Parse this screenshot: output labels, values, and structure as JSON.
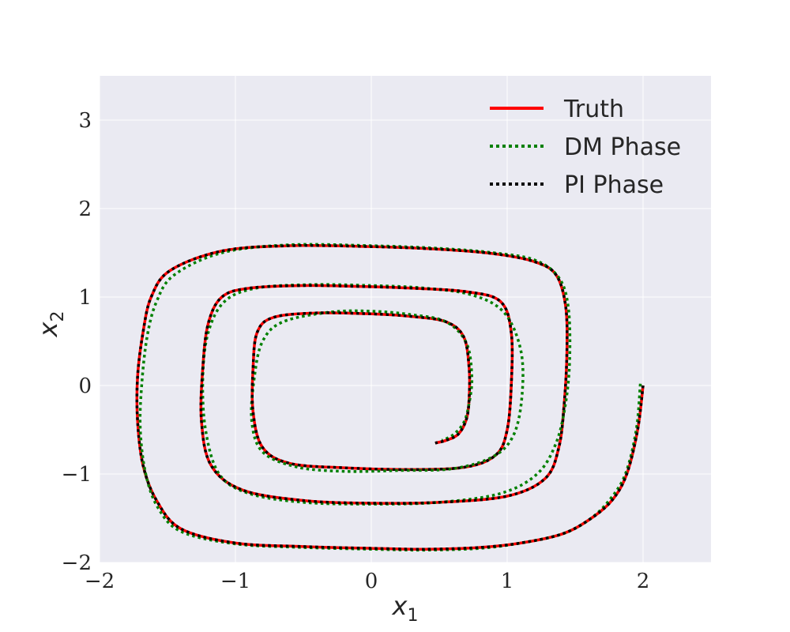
{
  "chart_data": {
    "type": "line",
    "title": "",
    "xlabel": "x",
    "xlabel_sub": "1",
    "ylabel": "x",
    "ylabel_sub": "2",
    "xlim": [
      -2,
      2.5
    ],
    "ylim": [
      -2,
      3.5
    ],
    "xticks": [
      -2,
      -1,
      0,
      1,
      2
    ],
    "yticks": [
      -2,
      -1,
      0,
      1,
      2,
      3
    ],
    "xtick_labels": [
      "−2",
      "−1",
      "0",
      "1",
      "2"
    ],
    "ytick_labels": [
      "−2",
      "−1",
      "0",
      "1",
      "2",
      "3"
    ],
    "grid": true,
    "background": "#eaeaf2",
    "legend_position": "top-right",
    "series": [
      {
        "name": "Truth",
        "style": "solid",
        "color": "#ff0000",
        "x": [
          2.0,
          1.96,
          1.88,
          1.77,
          1.6,
          1.4,
          1.1,
          0.8,
          0.4,
          0.0,
          -0.5,
          -1.0,
          -1.4,
          -1.58,
          -1.68,
          -1.72,
          -1.72,
          -1.68,
          -1.62,
          -1.48,
          -1.1,
          -0.6,
          0.0,
          0.5,
          0.9,
          1.2,
          1.36,
          1.43,
          1.44,
          1.42,
          1.38,
          1.28,
          1.0,
          0.5,
          0.0,
          -0.5,
          -0.95,
          -1.18,
          -1.25,
          -1.24,
          -1.2,
          -1.1,
          -0.9,
          -0.5,
          -0.1,
          0.3,
          0.7,
          0.95,
          1.03,
          1.03,
          1.0,
          0.92,
          0.7,
          0.3,
          -0.2,
          -0.6,
          -0.8,
          -0.87,
          -0.87,
          -0.84,
          -0.72,
          -0.4,
          0.0,
          0.3,
          0.55,
          0.68,
          0.72,
          0.72,
          0.7,
          0.64,
          0.55,
          0.47
        ],
        "y": [
          0.0,
          -0.5,
          -1.0,
          -1.3,
          -1.52,
          -1.68,
          -1.78,
          -1.83,
          -1.85,
          -1.84,
          -1.82,
          -1.78,
          -1.62,
          -1.3,
          -0.9,
          -0.4,
          0.1,
          0.6,
          1.0,
          1.3,
          1.52,
          1.58,
          1.57,
          1.54,
          1.49,
          1.4,
          1.25,
          0.9,
          0.4,
          -0.2,
          -0.7,
          -1.05,
          -1.25,
          -1.32,
          -1.33,
          -1.3,
          -1.18,
          -0.9,
          -0.4,
          0.2,
          0.7,
          1.0,
          1.1,
          1.13,
          1.12,
          1.1,
          1.06,
          0.95,
          0.6,
          0.0,
          -0.5,
          -0.78,
          -0.92,
          -0.95,
          -0.93,
          -0.88,
          -0.7,
          -0.3,
          0.2,
          0.6,
          0.77,
          0.82,
          0.81,
          0.78,
          0.72,
          0.55,
          0.2,
          -0.15,
          -0.38,
          -0.55,
          -0.62,
          -0.65
        ]
      },
      {
        "name": "DM Phase",
        "style": "dotted",
        "color": "#008000",
        "x": [
          1.98,
          1.95,
          1.87,
          1.75,
          1.6,
          1.4,
          1.1,
          0.8,
          0.4,
          0.0,
          -0.5,
          -1.0,
          -1.4,
          -1.57,
          -1.66,
          -1.7,
          -1.69,
          -1.65,
          -1.58,
          -1.45,
          -1.1,
          -0.6,
          0.0,
          0.5,
          0.9,
          1.2,
          1.38,
          1.45,
          1.46,
          1.43,
          1.36,
          1.22,
          0.95,
          0.5,
          0.0,
          -0.5,
          -0.9,
          -1.12,
          -1.22,
          -1.24,
          -1.2,
          -1.08,
          -0.85,
          -0.45,
          0.0,
          0.4,
          0.75,
          0.98,
          1.1,
          1.11,
          1.05,
          0.9,
          0.6,
          0.2,
          -0.2,
          -0.55,
          -0.8,
          -0.88,
          -0.86,
          -0.8,
          -0.65,
          -0.3,
          0.0,
          0.3,
          0.55,
          0.7,
          0.74,
          0.72,
          0.68,
          0.6,
          0.52
        ],
        "y": [
          0.02,
          -0.5,
          -1.0,
          -1.3,
          -1.52,
          -1.68,
          -1.78,
          -1.84,
          -1.86,
          -1.85,
          -1.83,
          -1.79,
          -1.65,
          -1.38,
          -1.0,
          -0.5,
          0.0,
          0.55,
          0.95,
          1.25,
          1.5,
          1.59,
          1.58,
          1.55,
          1.5,
          1.42,
          1.22,
          0.88,
          0.3,
          -0.2,
          -0.65,
          -1.0,
          -1.22,
          -1.32,
          -1.34,
          -1.32,
          -1.22,
          -1.0,
          -0.5,
          0.1,
          0.6,
          0.95,
          1.1,
          1.14,
          1.13,
          1.1,
          1.02,
          0.82,
          0.4,
          -0.1,
          -0.55,
          -0.8,
          -0.94,
          -0.96,
          -0.97,
          -0.92,
          -0.75,
          -0.4,
          0.1,
          0.5,
          0.72,
          0.83,
          0.84,
          0.8,
          0.72,
          0.48,
          0.1,
          -0.2,
          -0.42,
          -0.56,
          -0.62
        ]
      },
      {
        "name": "PI Phase",
        "style": "dotted",
        "color": "#000000",
        "x": [
          2.0,
          1.96,
          1.88,
          1.77,
          1.6,
          1.4,
          1.1,
          0.8,
          0.4,
          0.0,
          -0.5,
          -1.0,
          -1.4,
          -1.58,
          -1.68,
          -1.72,
          -1.72,
          -1.68,
          -1.62,
          -1.48,
          -1.1,
          -0.6,
          0.0,
          0.5,
          0.9,
          1.2,
          1.36,
          1.43,
          1.44,
          1.42,
          1.38,
          1.28,
          1.0,
          0.5,
          0.0,
          -0.5,
          -0.95,
          -1.18,
          -1.25,
          -1.24,
          -1.2,
          -1.1,
          -0.9,
          -0.5,
          -0.1,
          0.3,
          0.7,
          0.95,
          1.03,
          1.03,
          1.0,
          0.92,
          0.7,
          0.3,
          -0.2,
          -0.6,
          -0.8,
          -0.87,
          -0.87,
          -0.84,
          -0.72,
          -0.4,
          0.0,
          0.3,
          0.55,
          0.68,
          0.72,
          0.72,
          0.7,
          0.64,
          0.55,
          0.47
        ],
        "y": [
          0.0,
          -0.5,
          -1.0,
          -1.3,
          -1.52,
          -1.68,
          -1.78,
          -1.83,
          -1.85,
          -1.84,
          -1.82,
          -1.78,
          -1.62,
          -1.3,
          -0.9,
          -0.4,
          0.1,
          0.6,
          1.0,
          1.3,
          1.52,
          1.58,
          1.57,
          1.54,
          1.49,
          1.4,
          1.25,
          0.9,
          0.4,
          -0.2,
          -0.7,
          -1.05,
          -1.25,
          -1.32,
          -1.33,
          -1.3,
          -1.18,
          -0.9,
          -0.4,
          0.2,
          0.7,
          1.0,
          1.1,
          1.13,
          1.12,
          1.1,
          1.06,
          0.95,
          0.6,
          0.0,
          -0.5,
          -0.78,
          -0.92,
          -0.95,
          -0.93,
          -0.88,
          -0.7,
          -0.3,
          0.2,
          0.6,
          0.77,
          0.82,
          0.81,
          0.78,
          0.72,
          0.55,
          0.2,
          -0.15,
          -0.38,
          -0.55,
          -0.62,
          -0.65
        ]
      }
    ]
  }
}
